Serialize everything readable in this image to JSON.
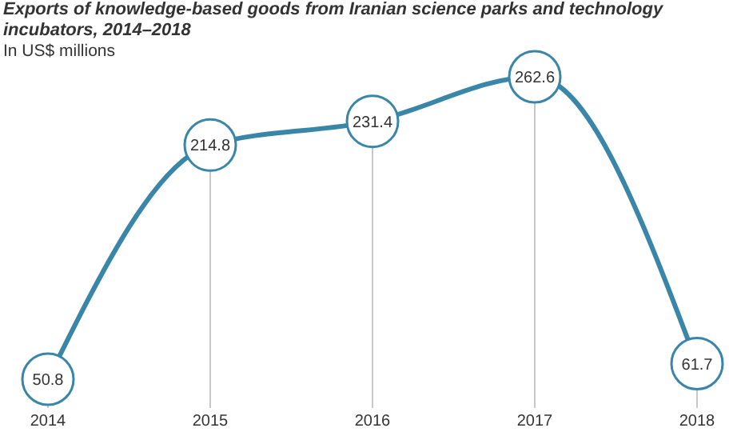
{
  "chart_data": {
    "type": "line",
    "title": "Exports of knowledge-based goods from Iranian science parks and technology incubators, 2014–2018",
    "subtitle": "In US$ millions",
    "categories": [
      "2014",
      "2015",
      "2016",
      "2017",
      "2018"
    ],
    "series": [
      {
        "color": "#3a86a8",
        "values": [
          50.8,
          214.8,
          231.4,
          262.6,
          61.7
        ]
      }
    ],
    "data_labels": true,
    "grid": "x",
    "marker": "circle",
    "line_style": "solid"
  }
}
